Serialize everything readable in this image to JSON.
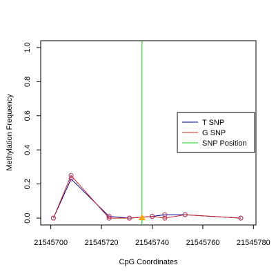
{
  "chart_data": {
    "type": "line",
    "xlabel": "CpG Coordinates",
    "ylabel": "Methylation Frequency",
    "xlim": [
      21545696,
      21545781
    ],
    "ylim": [
      -0.04,
      1.04
    ],
    "x_ticks": [
      21545700,
      21545720,
      21545740,
      21545760,
      21545780
    ],
    "y_ticks": [
      0.0,
      0.2,
      0.4,
      0.6,
      0.8,
      1.0
    ],
    "y_tick_labels": [
      "0.0",
      "0.2",
      "0.4",
      "0.6",
      "0.8",
      "1.0"
    ],
    "x": [
      21545701,
      21545708,
      21545723,
      21545731,
      21545740,
      21545745,
      21545753,
      21545775
    ],
    "series": [
      {
        "name": "T SNP",
        "color": "#00008b",
        "values": [
          0.0,
          0.23,
          0.01,
          0.0,
          0.01,
          0.02,
          0.02,
          0.0
        ]
      },
      {
        "name": "G SNP",
        "color": "#cd2626",
        "values": [
          0.0,
          0.25,
          0.0,
          0.0,
          0.01,
          0.0,
          0.02,
          0.0
        ]
      }
    ],
    "snp_position": {
      "name": "SNP Position",
      "x": 21545736,
      "color": "#00cc00"
    },
    "snp_marker_color": "#ffa500",
    "point_color": "#b03060",
    "grid": false,
    "legend_position": "right"
  }
}
